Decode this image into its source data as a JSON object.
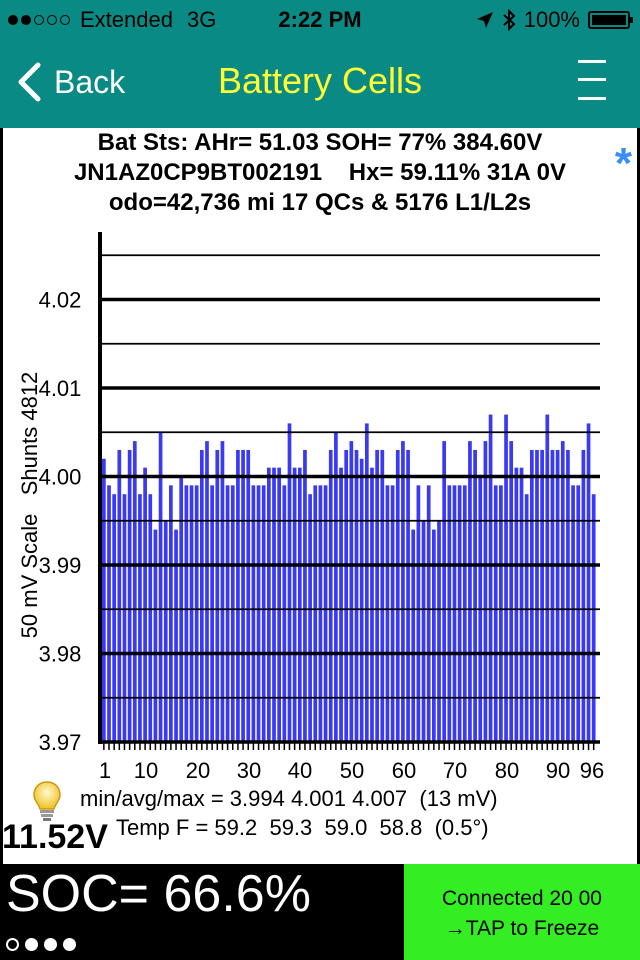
{
  "status_bar": {
    "carrier": "Extended",
    "network": "3G",
    "time": "2:22 PM",
    "battery": "100%",
    "signal_bars_filled": 2,
    "signal_bars_total": 5
  },
  "nav": {
    "back_label": "Back",
    "title": "Battery Cells"
  },
  "info": {
    "line1": "Bat Sts: AHr= 51.03 SOH= 77% 384.60V",
    "line2": "JN1AZ0CP9BT002191    Hx= 59.11% 31A 0V",
    "line3": "odo=42,736 mi 17 QCs & 5176 L1/L2s",
    "star": "*"
  },
  "chart_data": {
    "type": "bar",
    "ylabel": "50 mV Scale   Shunts 4812",
    "ylim": [
      3.97,
      4.025
    ],
    "yticks": [
      "4.02",
      "4.01",
      "4.00",
      "3.99",
      "3.98",
      "3.97"
    ],
    "xticks": [
      "1",
      "10",
      "20",
      "30",
      "40",
      "50",
      "60",
      "70",
      "80",
      "90",
      "96"
    ],
    "bar_color": "#3a3af2",
    "values": [
      4.002,
      3.999,
      3.998,
      4.003,
      3.998,
      4.003,
      4.004,
      3.998,
      4.001,
      3.998,
      3.994,
      4.005,
      3.995,
      3.999,
      3.994,
      4.0,
      3.999,
      3.999,
      3.999,
      4.003,
      4.004,
      3.999,
      4.003,
      4.004,
      3.999,
      3.999,
      4.003,
      4.003,
      4.003,
      3.999,
      3.999,
      3.999,
      4.001,
      4.001,
      4.001,
      3.999,
      4.006,
      4.001,
      4.001,
      4.003,
      3.998,
      3.999,
      3.999,
      3.999,
      4.003,
      4.005,
      4.001,
      4.003,
      4.004,
      4.003,
      4.002,
      4.006,
      4.001,
      4.003,
      4.003,
      3.999,
      3.999,
      4.003,
      4.004,
      4.003,
      3.994,
      3.999,
      3.995,
      3.999,
      3.994,
      3.995,
      4.004,
      3.999,
      3.999,
      3.999,
      3.999,
      4.004,
      4.003,
      4.0,
      4.004,
      4.007,
      3.999,
      3.999,
      4.007,
      4.004,
      4.001,
      4.001,
      3.998,
      4.003,
      4.003,
      4.003,
      4.007,
      4.003,
      4.003,
      4.004,
      4.003,
      3.999,
      3.999,
      4.003,
      4.006,
      3.998
    ]
  },
  "stats": {
    "minavgmax": "min/avg/max = 3.994 4.001 4.007  (13 mV)",
    "temps": "Temp F = 59.2  59.3  59.0  58.8  (0.5°)"
  },
  "aux_voltage": "11.52V",
  "soc": "SOC= 66.6%",
  "connection": {
    "line1": "Connected 20 00",
    "line2": "→TAP to Freeze"
  },
  "pager": {
    "pages": 4,
    "current": 0
  },
  "colors": {
    "header": "#0a8a85",
    "title": "#ffff33",
    "connected_bg": "#33ee22",
    "star": "#3a8ef6"
  }
}
